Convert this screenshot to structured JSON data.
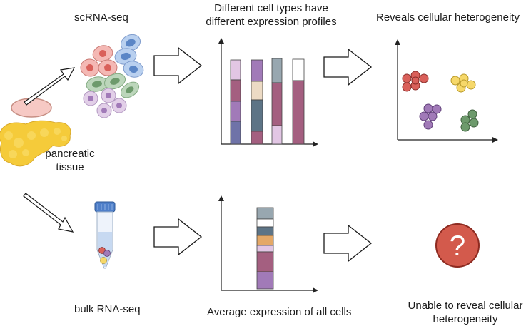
{
  "labels": {
    "scrna": "scRNA-seq",
    "diff_profiles_line1": "Different cell types have",
    "diff_profiles_line2": "different expression profiles",
    "reveals": "Reveals cellular heterogeneity",
    "tissue_line1": "pancreatic",
    "tissue_line2": "tissue",
    "bulk": "bulk RNA-seq",
    "average": "Average expression of all cells",
    "unable_line1": "Unable to reveal cellular",
    "unable_line2": "heterogeneity",
    "question_mark": "?"
  },
  "colors": {
    "red": "#d9605a",
    "blue": "#5b86c6",
    "green": "#6d9a6c",
    "purple": "#a17ab8",
    "yellow": "#f6d86a",
    "rose": "#a45f80",
    "lavender": "#e2c6e4",
    "slate": "#5d7486",
    "peach": "#ecdac4",
    "orange": "#e4a867",
    "grey": "#98a7b0",
    "pancreas": "#f5cb3a",
    "question": "#d35a4c"
  },
  "icons": {
    "tissue": "pancreas-icon",
    "cells": "cell-cluster-icon",
    "tube": "test-tube-icon",
    "question": "question-mark-icon"
  }
}
